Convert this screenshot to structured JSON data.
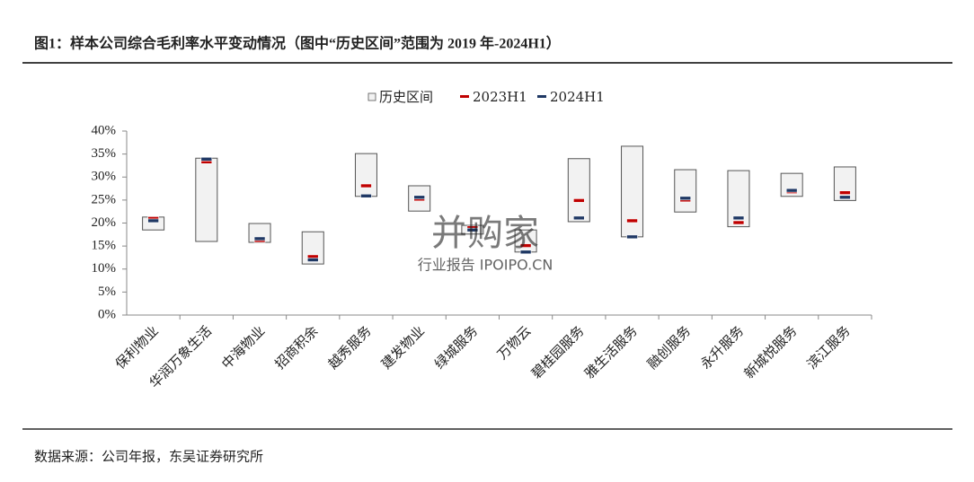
{
  "header": {
    "title": "图1：样本公司综合毛利率水平变动情况（图中“历史区间”范围为 2019 年-2024H1）"
  },
  "chart_data": {
    "type": "range-marker",
    "categories": [
      "保利物业",
      "华润万象生活",
      "中海物业",
      "招商积余",
      "越秀服务",
      "建发物业",
      "绿城服务",
      "万物云",
      "碧桂园服务",
      "雅生活服务",
      "融创服务",
      "永升服务",
      "新城悦服务",
      "滨江服务"
    ],
    "series": [
      {
        "name": "历史区间",
        "color": "#f2f2f2",
        "low": [
          18.5,
          16.0,
          15.8,
          11.1,
          25.8,
          22.6,
          17.6,
          13.7,
          20.3,
          17.0,
          22.4,
          19.2,
          25.8,
          24.9
        ],
        "high": [
          21.3,
          34.1,
          19.9,
          18.1,
          35.1,
          28.1,
          19.5,
          18.5,
          34.0,
          36.7,
          31.6,
          31.4,
          30.8,
          32.2
        ]
      },
      {
        "name": "2023H1",
        "color": "#c00000",
        "values": [
          21.0,
          33.3,
          16.2,
          12.7,
          28.1,
          25.2,
          19.0,
          15.1,
          24.9,
          20.5,
          25.0,
          20.1,
          26.8,
          26.6
        ]
      },
      {
        "name": "2024H1",
        "color": "#1f3864",
        "values": [
          20.5,
          33.9,
          16.6,
          12.0,
          25.9,
          25.6,
          18.5,
          13.7,
          21.1,
          17.0,
          25.4,
          21.1,
          27.1,
          25.6
        ]
      }
    ],
    "ylim": [
      0,
      40
    ],
    "yticks": [
      {
        "value": 0,
        "label": "0%"
      },
      {
        "value": 5,
        "label": "5%"
      },
      {
        "value": 10,
        "label": "10%"
      },
      {
        "value": 15,
        "label": "15%"
      },
      {
        "value": 20,
        "label": "20%"
      },
      {
        "value": 25,
        "label": "25%"
      },
      {
        "value": 30,
        "label": "30%"
      },
      {
        "value": 35,
        "label": "35%"
      },
      {
        "value": 40,
        "label": "40%"
      }
    ],
    "legend": "top"
  },
  "watermark": {
    "main": "并购家",
    "sub": "行业报告 IPOIPO.CN"
  },
  "footer": {
    "source": "数据来源：公司年报，东吴证券研究所"
  }
}
